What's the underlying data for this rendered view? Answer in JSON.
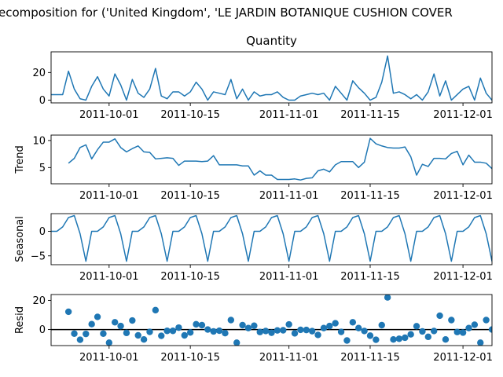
{
  "figure": {
    "suptitle": "ecomposition for ('United Kingdom', 'LE JARDIN BOTANIQUE CUSHION COVER"
  },
  "colors": {
    "line": "#1f77b4",
    "axis": "#000000",
    "zero_line": "#000000"
  },
  "chart_data": [
    {
      "type": "line",
      "title": "Quantity",
      "ylabel": "",
      "xlim": [
        "2011-09-21",
        "2011-12-06"
      ],
      "ylim": [
        -2,
        35
      ],
      "yticks": [
        0,
        20
      ],
      "xticks": [
        "2011-10-01",
        "2011-10-15",
        "2011-11-01",
        "2011-11-15",
        "2011-12-01"
      ],
      "series": [
        {
          "x_start": "2011-09-21",
          "values": [
            4,
            4,
            4,
            21,
            8,
            1,
            0,
            10,
            17,
            8,
            3,
            19,
            11,
            0,
            15,
            5,
            2,
            8,
            23,
            3,
            1,
            6,
            6,
            3,
            6,
            13,
            8,
            0,
            6,
            5,
            4,
            15,
            1,
            8,
            0,
            6,
            3,
            4,
            4,
            6,
            2,
            0,
            0,
            3,
            4,
            5,
            4,
            5,
            0,
            10,
            5,
            0,
            14,
            9,
            5,
            0,
            2,
            13,
            32,
            5,
            6,
            4,
            1,
            4,
            0,
            6,
            19,
            3,
            14,
            0,
            4,
            8,
            10,
            0,
            16,
            5,
            0,
            2,
            1,
            1,
            0,
            8
          ]
        }
      ]
    },
    {
      "type": "line",
      "title": "",
      "ylabel": "Trend",
      "xlim": [
        "2011-09-21",
        "2011-12-06"
      ],
      "ylim": [
        2,
        11
      ],
      "yticks": [
        5,
        10
      ],
      "xticks": [
        "2011-10-01",
        "2011-10-15",
        "2011-11-01",
        "2011-11-15",
        "2011-12-01"
      ],
      "series": [
        {
          "x_start": "2011-09-24",
          "values": [
            5.8,
            6.7,
            8.7,
            9.2,
            6.6,
            8.3,
            9.7,
            9.7,
            10.3,
            8.7,
            7.9,
            8.5,
            9.0,
            7.9,
            7.8,
            6.6,
            6.7,
            6.8,
            6.7,
            5.4,
            6.2,
            6.2,
            6.2,
            6.1,
            6.2,
            7.2,
            5.5,
            5.5,
            5.5,
            5.5,
            5.3,
            5.3,
            3.6,
            4.4,
            3.6,
            3.6,
            2.8,
            2.8,
            2.8,
            2.9,
            2.7,
            3.0,
            3.1,
            4.4,
            4.7,
            4.2,
            5.5,
            6.1,
            6.1,
            6.1,
            5.0,
            6.0,
            10.4,
            9.4,
            9.0,
            8.7,
            8.6,
            8.6,
            8.8,
            7.0,
            3.6,
            5.6,
            5.2,
            6.7,
            6.7,
            6.6,
            7.6,
            8.0,
            5.5,
            7.3,
            6.0,
            6.0,
            5.8,
            4.8,
            3.6,
            3.6,
            2.3
          ]
        }
      ]
    },
    {
      "type": "line",
      "title": "",
      "ylabel": "Seasonal",
      "xlim": [
        "2011-09-21",
        "2011-12-06"
      ],
      "ylim": [
        -6.8,
        3.6
      ],
      "yticks": [
        -5,
        0
      ],
      "xticks": [
        "2011-10-01",
        "2011-10-15",
        "2011-11-01",
        "2011-11-15",
        "2011-12-01"
      ],
      "series": [
        {
          "x_start": "2011-09-21",
          "pattern": [
            0.0,
            0.0,
            0.9,
            2.8,
            3.2,
            -0.5,
            -6.1
          ],
          "count": 82
        }
      ]
    },
    {
      "type": "scatter",
      "title": "",
      "ylabel": "Resid",
      "xlim": [
        "2011-09-21",
        "2011-12-06"
      ],
      "ylim": [
        -11,
        24
      ],
      "yticks": [
        0,
        20
      ],
      "xticks": [
        "2011-10-01",
        "2011-10-15",
        "2011-11-01",
        "2011-11-15",
        "2011-12-01"
      ],
      "reference_line": 0,
      "series": [
        {
          "x_start": "2011-09-24",
          "values": [
            12.2,
            -2.8,
            -7.0,
            -3.0,
            3.7,
            8.7,
            -2.8,
            -9.0,
            5.0,
            2.4,
            -2.3,
            6.2,
            -4.0,
            -6.8,
            -1.6,
            13.3,
            -4.3,
            -0.9,
            -0.9,
            1.3,
            -4.0,
            -2.0,
            3.6,
            3.0,
            0.0,
            -1.3,
            -0.8,
            -2.5,
            6.5,
            -9.0,
            3.0,
            1.0,
            2.6,
            -1.7,
            -1.0,
            -2.2,
            -0.6,
            -0.5,
            3.5,
            -2.6,
            -0.2,
            -0.3,
            -1.1,
            -3.7,
            1.0,
            2.4,
            4.3,
            -1.6,
            -7.5,
            5.0,
            1.0,
            -1.0,
            -4.2,
            -7.0,
            3.0,
            22.0,
            -6.8,
            -6.3,
            -5.6,
            -3.3,
            2.3,
            -1.3,
            -5.0,
            -1.0,
            9.5,
            -6.8,
            6.5,
            -1.7,
            -2.1,
            1.0,
            3.3,
            -9.0,
            6.5,
            0.0,
            2.4,
            -1.3,
            -1.5
          ]
        }
      ]
    }
  ]
}
